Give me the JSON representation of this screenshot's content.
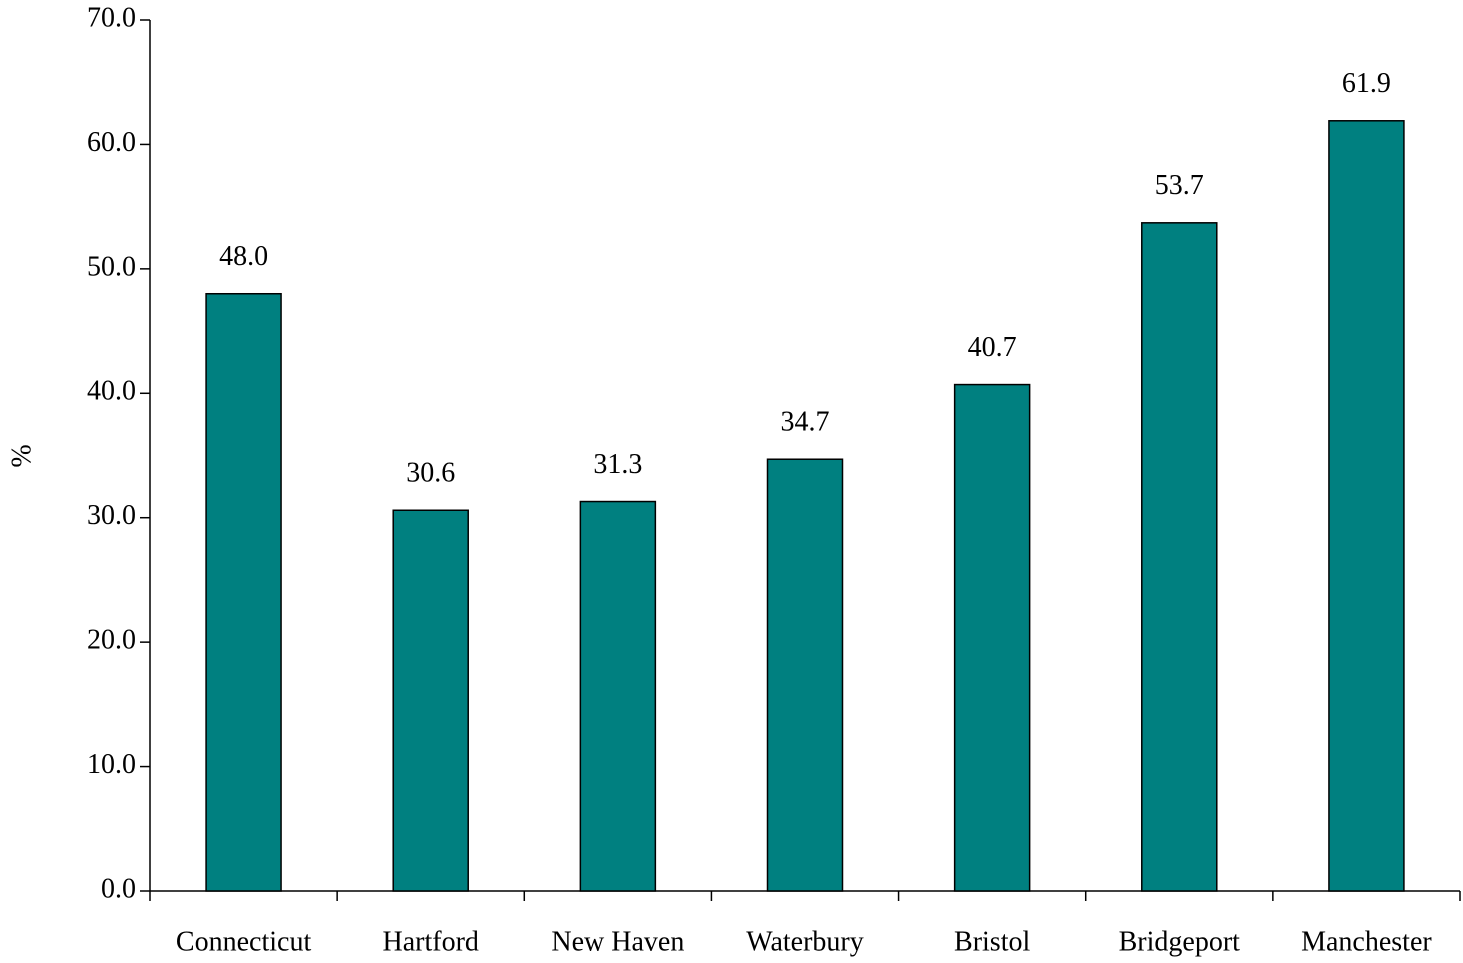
{
  "chart_data": {
    "type": "bar",
    "y_label": "%",
    "categories": [
      "Connecticut",
      "Hartford",
      "New Haven",
      "Waterbury",
      "Bristol",
      "Bridgeport",
      "Manchester"
    ],
    "values": [
      48.0,
      30.6,
      31.3,
      34.7,
      40.7,
      53.7,
      61.9
    ],
    "value_labels": [
      "48.0",
      "30.6",
      "31.3",
      "34.7",
      "40.7",
      "53.7",
      "61.9"
    ],
    "color": "#008080",
    "ylim": [
      0,
      70
    ],
    "yticks": [
      {
        "value": 0,
        "label": "0.0"
      },
      {
        "value": 10,
        "label": "10.0"
      },
      {
        "value": 20,
        "label": "20.0"
      },
      {
        "value": 30,
        "label": "30.0"
      },
      {
        "value": 40,
        "label": "40.0"
      },
      {
        "value": 50,
        "label": "50.0"
      },
      {
        "value": 60,
        "label": "60.0"
      },
      {
        "value": 70,
        "label": "70.0"
      }
    ],
    "grid": false
  }
}
